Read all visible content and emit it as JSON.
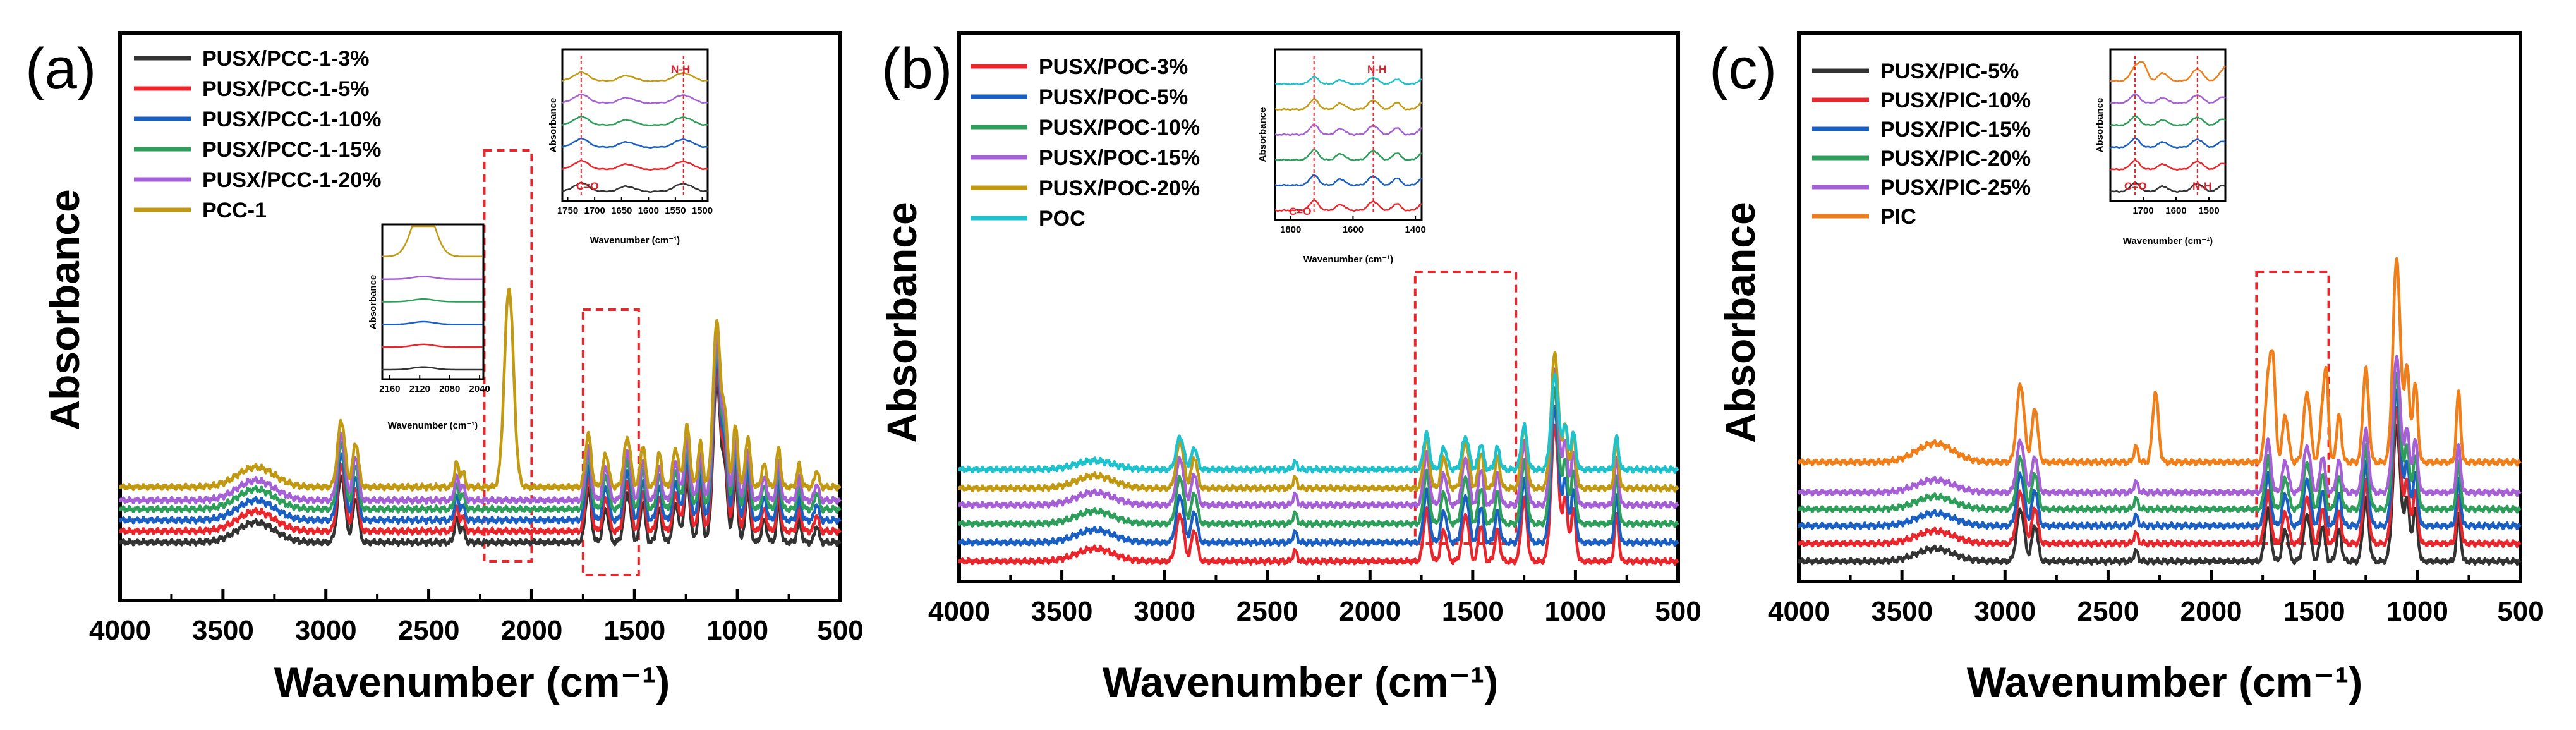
{
  "chart_data": [
    {
      "type": "line",
      "panel": "(a)",
      "xlabel": "Wavenumber (cm⁻¹)",
      "ylabel": "Absorbance",
      "xlim": [
        4000,
        500
      ],
      "x_reversed": true,
      "xticks": [
        4000,
        3500,
        3000,
        2500,
        2000,
        1500,
        1000,
        500
      ],
      "yticks_shown": false,
      "legend_position": "top-left",
      "highlight_regions": [
        [
          2230,
          2000
        ],
        [
          1750,
          1480
        ]
      ],
      "peaks": [
        {
          "x": 3340,
          "h": 0.18,
          "w": 90
        },
        {
          "x": 2925,
          "h": 0.6,
          "w": 18
        },
        {
          "x": 2855,
          "h": 0.4,
          "w": 14
        },
        {
          "x": 2365,
          "h": 0.22,
          "w": 10
        },
        {
          "x": 2335,
          "h": 0.14,
          "w": 10
        },
        {
          "x": 1725,
          "h": 0.48,
          "w": 14
        },
        {
          "x": 1640,
          "h": 0.3,
          "w": 14
        },
        {
          "x": 1535,
          "h": 0.45,
          "w": 16
        },
        {
          "x": 1460,
          "h": 0.38,
          "w": 12
        },
        {
          "x": 1380,
          "h": 0.3,
          "w": 12
        },
        {
          "x": 1300,
          "h": 0.35,
          "w": 14
        },
        {
          "x": 1245,
          "h": 0.55,
          "w": 14
        },
        {
          "x": 1180,
          "h": 0.4,
          "w": 12
        },
        {
          "x": 1100,
          "h": 1.5,
          "w": 18
        },
        {
          "x": 1060,
          "h": 0.6,
          "w": 12
        },
        {
          "x": 1010,
          "h": 0.55,
          "w": 12
        },
        {
          "x": 950,
          "h": 0.45,
          "w": 12
        },
        {
          "x": 870,
          "h": 0.2,
          "w": 12
        },
        {
          "x": 800,
          "h": 0.35,
          "w": 10
        },
        {
          "x": 700,
          "h": 0.2,
          "w": 10
        },
        {
          "x": 615,
          "h": 0.15,
          "w": 10
        }
      ],
      "series": [
        {
          "name": "PUSX/PCC-1-3%",
          "color": "#333333",
          "offset": 0.0,
          "scale": 1.0
        },
        {
          "name": "PUSX/PCC-1-5%",
          "color": "#e8262b",
          "offset": 0.1,
          "scale": 1.0
        },
        {
          "name": "PUSX/PCC-1-10%",
          "color": "#1a5fc4",
          "offset": 0.2,
          "scale": 1.0
        },
        {
          "name": "PUSX/PCC-1-15%",
          "color": "#2e9e5b",
          "offset": 0.3,
          "scale": 1.0
        },
        {
          "name": "PUSX/PCC-1-20%",
          "color": "#a660d6",
          "offset": 0.38,
          "scale": 1.0
        },
        {
          "name": "PCC-1",
          "color": "#c29a12",
          "offset": 0.5,
          "scale": 1.0,
          "extra_peaks": [
            {
              "x": 2110,
              "h": 1.8,
              "w": 22
            }
          ]
        }
      ],
      "insets": [
        {
          "xlabel": "Wavenumber (cm⁻¹)",
          "ylabel": "Absorbance",
          "xlim": [
            2170,
            2035
          ],
          "xticks": [
            2160,
            2120,
            2080,
            2040
          ]
        },
        {
          "xlabel": "Wavenumber (cm⁻¹)",
          "ylabel": "Absorbance",
          "xlim": [
            1760,
            1490
          ],
          "xticks": [
            1750,
            1700,
            1650,
            1600,
            1550,
            1500
          ],
          "annotations": [
            "C=O",
            "N-H"
          ]
        }
      ]
    },
    {
      "type": "line",
      "panel": "(b)",
      "xlabel": "Wavenumber (cm⁻¹)",
      "ylabel": "Absorbance",
      "xlim": [
        4000,
        500
      ],
      "x_reversed": true,
      "xticks": [
        4000,
        3500,
        3000,
        2500,
        2000,
        1500,
        1000,
        500
      ],
      "yticks_shown": false,
      "legend_position": "top-left",
      "highlight_regions": [
        [
          1780,
          1290
        ]
      ],
      "peaks": [
        {
          "x": 3340,
          "h": 0.12,
          "w": 90
        },
        {
          "x": 2925,
          "h": 0.45,
          "w": 18
        },
        {
          "x": 2855,
          "h": 0.3,
          "w": 14
        },
        {
          "x": 2365,
          "h": 0.1,
          "w": 10
        },
        {
          "x": 1725,
          "h": 0.5,
          "w": 14
        },
        {
          "x": 1640,
          "h": 0.3,
          "w": 14
        },
        {
          "x": 1535,
          "h": 0.45,
          "w": 16
        },
        {
          "x": 1460,
          "h": 0.35,
          "w": 12
        },
        {
          "x": 1380,
          "h": 0.3,
          "w": 12
        },
        {
          "x": 1250,
          "h": 0.6,
          "w": 14
        },
        {
          "x": 1100,
          "h": 1.3,
          "w": 18
        },
        {
          "x": 1050,
          "h": 0.6,
          "w": 12
        },
        {
          "x": 1010,
          "h": 0.5,
          "w": 12
        },
        {
          "x": 800,
          "h": 0.45,
          "w": 10
        }
      ],
      "series": [
        {
          "name": "PUSX/POC-3%",
          "color": "#e8262b",
          "offset": 0.0,
          "scale": 1.0
        },
        {
          "name": "PUSX/POC-5%",
          "color": "#1a5fc4",
          "offset": 0.18,
          "scale": 1.0
        },
        {
          "name": "PUSX/POC-10%",
          "color": "#2e9e5b",
          "offset": 0.36,
          "scale": 1.0
        },
        {
          "name": "PUSX/POC-15%",
          "color": "#a660d6",
          "offset": 0.54,
          "scale": 1.0
        },
        {
          "name": "PUSX/POC-20%",
          "color": "#c29a12",
          "offset": 0.7,
          "scale": 1.0
        },
        {
          "name": "POC",
          "color": "#1ec2cc",
          "offset": 0.88,
          "scale": 0.7
        }
      ],
      "insets": [
        {
          "xlabel": "Wavenumber (cm⁻¹)",
          "ylabel": "Absorbance",
          "xlim": [
            1850,
            1380
          ],
          "xticks": [
            1800,
            1600,
            1400
          ],
          "annotations": [
            "C=O",
            "N-H"
          ]
        }
      ]
    },
    {
      "type": "line",
      "panel": "(c)",
      "xlabel": "Wavenumber (cm⁻¹)",
      "ylabel": "Absorbance",
      "xlim": [
        4000,
        500
      ],
      "x_reversed": true,
      "xticks": [
        4000,
        3500,
        3000,
        2500,
        2000,
        1500,
        1000,
        500
      ],
      "yticks_shown": false,
      "legend_position": "top-left",
      "highlight_regions": [
        [
          1780,
          1430
        ]
      ],
      "peaks": [
        {
          "x": 3340,
          "h": 0.12,
          "w": 90
        },
        {
          "x": 2925,
          "h": 0.5,
          "w": 18
        },
        {
          "x": 2855,
          "h": 0.35,
          "w": 14
        },
        {
          "x": 2365,
          "h": 0.1,
          "w": 10
        },
        {
          "x": 1725,
          "h": 0.5,
          "w": 14
        },
        {
          "x": 1640,
          "h": 0.3,
          "w": 14
        },
        {
          "x": 1535,
          "h": 0.45,
          "w": 16
        },
        {
          "x": 1460,
          "h": 0.35,
          "w": 12
        },
        {
          "x": 1380,
          "h": 0.3,
          "w": 12
        },
        {
          "x": 1250,
          "h": 0.6,
          "w": 14
        },
        {
          "x": 1100,
          "h": 1.3,
          "w": 18
        },
        {
          "x": 1050,
          "h": 0.6,
          "w": 12
        },
        {
          "x": 1010,
          "h": 0.5,
          "w": 12
        },
        {
          "x": 800,
          "h": 0.45,
          "w": 10
        }
      ],
      "series": [
        {
          "name": "PUSX/PIC-5%",
          "color": "#333333",
          "offset": 0.0,
          "scale": 1.0
        },
        {
          "name": "PUSX/PIC-10%",
          "color": "#e8262b",
          "offset": 0.17,
          "scale": 1.0
        },
        {
          "name": "PUSX/PIC-15%",
          "color": "#1a5fc4",
          "offset": 0.34,
          "scale": 1.0
        },
        {
          "name": "PUSX/PIC-20%",
          "color": "#2e9e5b",
          "offset": 0.5,
          "scale": 1.0
        },
        {
          "name": "PUSX/PIC-25%",
          "color": "#a660d6",
          "offset": 0.66,
          "scale": 1.0
        },
        {
          "name": "PIC",
          "color": "#f07f1a",
          "offset": 0.95,
          "scale": 1.5,
          "extra_peaks": [
            {
              "x": 2270,
              "h": 0.45,
              "w": 14
            },
            {
              "x": 1700,
              "h": 0.6,
              "w": 12
            },
            {
              "x": 1440,
              "h": 0.5,
              "w": 10
            }
          ]
        }
      ],
      "insets": [
        {
          "xlabel": "Wavenumber (cm⁻¹)",
          "ylabel": "Absorbance",
          "xlim": [
            1800,
            1450
          ],
          "xticks": [
            1700,
            1600,
            1500
          ],
          "annotations": [
            "C=O",
            "N-H"
          ]
        }
      ]
    }
  ]
}
